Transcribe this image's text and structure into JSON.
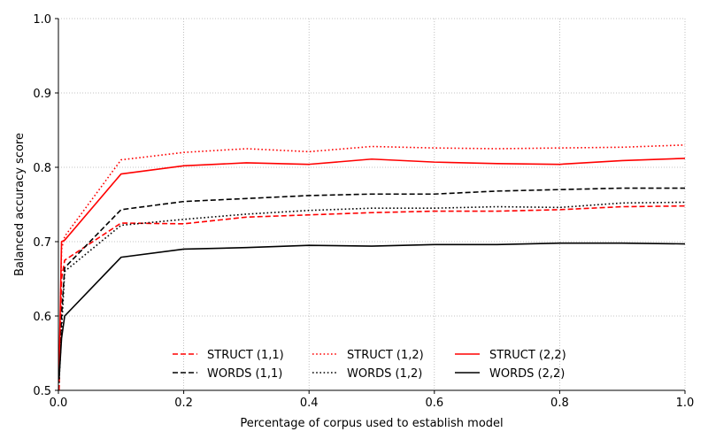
{
  "chart_data": {
    "type": "line",
    "title": "",
    "xlabel": "Percentage of corpus used to establish model",
    "ylabel": "Balanced accuracy score",
    "xlim": [
      0.0,
      1.0
    ],
    "ylim": [
      0.5,
      1.0
    ],
    "xticks": [
      "0.0",
      "0.2",
      "0.4",
      "0.6",
      "0.8",
      "1.0"
    ],
    "yticks": [
      "0.5",
      "0.6",
      "0.7",
      "0.8",
      "0.9",
      "1.0"
    ],
    "grid": true,
    "legend_position": "lower center",
    "series": [
      {
        "name": "STRUCT (1,1)",
        "color": "#ff0000",
        "dash": "dashed",
        "x": [
          0.001,
          0.005,
          0.01,
          0.1,
          0.2,
          0.3,
          0.4,
          0.5,
          0.6,
          0.7,
          0.8,
          0.9,
          1.0
        ],
        "y": [
          0.5,
          0.65,
          0.675,
          0.725,
          0.724,
          0.733,
          0.736,
          0.739,
          0.741,
          0.741,
          0.743,
          0.747,
          0.748
        ]
      },
      {
        "name": "WORDS (1,1)",
        "color": "#000000",
        "dash": "dashed",
        "x": [
          0.001,
          0.005,
          0.01,
          0.1,
          0.2,
          0.3,
          0.4,
          0.5,
          0.6,
          0.7,
          0.8,
          0.9,
          1.0
        ],
        "y": [
          0.52,
          0.6,
          0.665,
          0.743,
          0.754,
          0.758,
          0.762,
          0.764,
          0.764,
          0.768,
          0.77,
          0.772,
          0.772
        ]
      },
      {
        "name": "STRUCT (1,2)",
        "color": "#ff0000",
        "dash": "dotted",
        "x": [
          0.001,
          0.005,
          0.01,
          0.1,
          0.2,
          0.3,
          0.4,
          0.5,
          0.6,
          0.7,
          0.8,
          0.9,
          1.0
        ],
        "y": [
          0.5,
          0.69,
          0.707,
          0.81,
          0.82,
          0.825,
          0.821,
          0.828,
          0.826,
          0.825,
          0.826,
          0.827,
          0.83
        ]
      },
      {
        "name": "WORDS (1,2)",
        "color": "#000000",
        "dash": "dotted",
        "x": [
          0.001,
          0.005,
          0.01,
          0.1,
          0.2,
          0.3,
          0.4,
          0.5,
          0.6,
          0.7,
          0.8,
          0.9,
          1.0
        ],
        "y": [
          0.51,
          0.58,
          0.66,
          0.722,
          0.73,
          0.737,
          0.742,
          0.745,
          0.745,
          0.747,
          0.746,
          0.752,
          0.753
        ]
      },
      {
        "name": "STRUCT (2,2)",
        "color": "#ff0000",
        "dash": "solid",
        "x": [
          0.001,
          0.005,
          0.01,
          0.1,
          0.2,
          0.3,
          0.4,
          0.5,
          0.6,
          0.7,
          0.8,
          0.9,
          1.0
        ],
        "y": [
          0.52,
          0.7,
          0.702,
          0.791,
          0.802,
          0.806,
          0.804,
          0.811,
          0.807,
          0.805,
          0.804,
          0.809,
          0.812
        ]
      },
      {
        "name": "WORDS (2,2)",
        "color": "#000000",
        "dash": "solid",
        "x": [
          0.001,
          0.005,
          0.01,
          0.1,
          0.2,
          0.3,
          0.4,
          0.5,
          0.6,
          0.7,
          0.8,
          0.9,
          1.0
        ],
        "y": [
          0.515,
          0.57,
          0.6,
          0.679,
          0.69,
          0.692,
          0.695,
          0.694,
          0.696,
          0.696,
          0.698,
          0.698,
          0.697
        ]
      }
    ]
  }
}
